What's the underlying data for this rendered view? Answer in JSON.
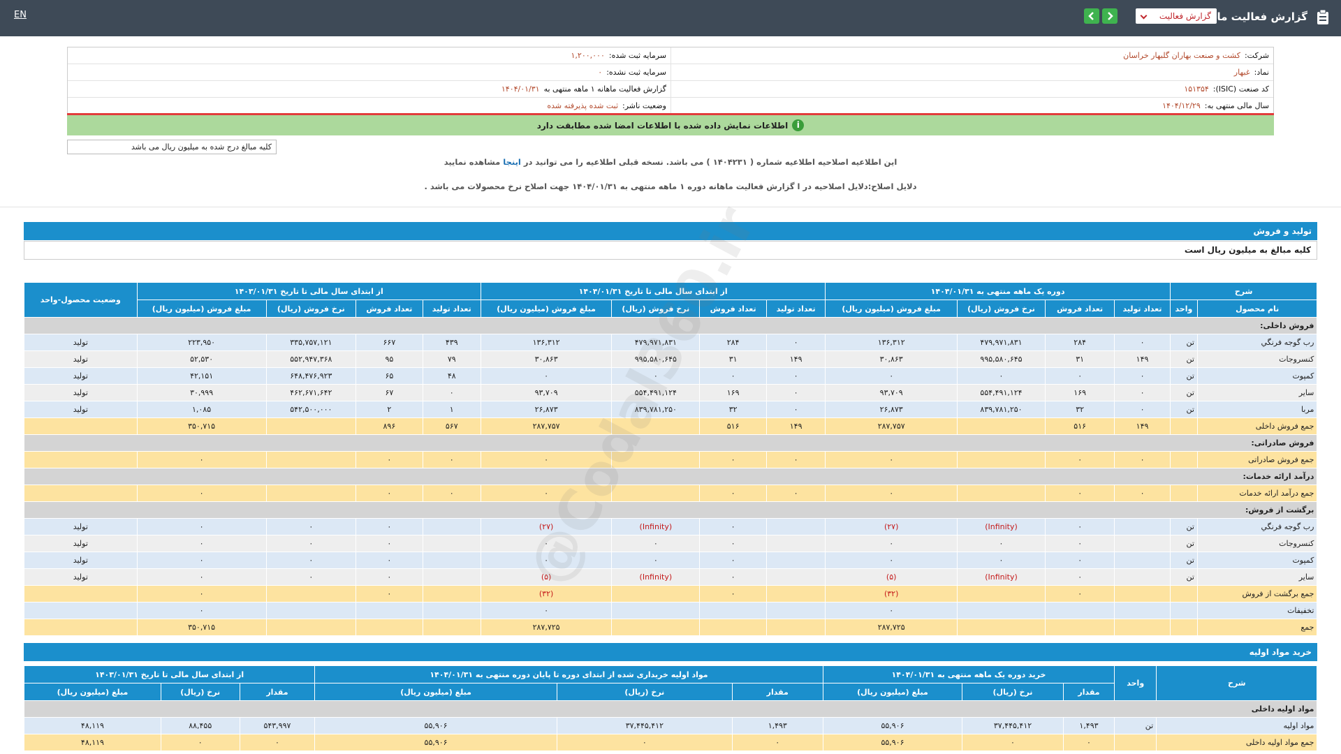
{
  "topbar": {
    "title": "گزارش فعالیت ماهانه",
    "dropdown": "گزارش فعالیت",
    "lang": "EN"
  },
  "info": {
    "right": [
      {
        "label": "شرکت:",
        "value": "کشت و صنعت بهاران گلبهار خراسان"
      },
      {
        "label": "نماد:",
        "value": "غبهار"
      },
      {
        "label": "کد صنعت (ISIC):",
        "value": "۱۵۱۳۵۴"
      },
      {
        "label": "سال مالی منتهی به:",
        "value": "۱۴۰۴/۱۲/۲۹"
      }
    ],
    "left": [
      {
        "label": "سرمایه ثبت شده:",
        "value": "۱,۲۰۰,۰۰۰"
      },
      {
        "label": "سرمایه ثبت نشده:",
        "value": "۰"
      },
      {
        "label": "گزارش فعالیت ماهانه ۱ ماهه منتهی به",
        "value": "۱۴۰۴/۰۱/۳۱"
      },
      {
        "label": "وضعیت ناشر:",
        "value": "ثبت شده پذیرفته شده"
      }
    ]
  },
  "notice": "اطلاعات نمایش داده شده با اطلاعات امضا شده مطابقت دارد",
  "unit_note": "کلیه مبالغ درج شده به میلیون ریال می باشد",
  "correction": {
    "before": "این اطلاعیه اصلاحیه اطلاعیه شماره ( ۱۴۰۴۲۳۱ ) می باشد. نسخه قبلی اطلاعیه را می توانید در",
    "link": "اینجا",
    "after": "مشاهده نمایید",
    "reason": "دلایل اصلاح:دلایل اصلاحیه در ا گزارش فعالیت ماهانه دوره ۱ ماهه منتهی به ۱۴۰۴/۰۱/۳۱ جهت اصلاح نرخ محصولات می باشد ."
  },
  "watermark": "@Codal360.ir",
  "production": {
    "title": "تولید و فروش",
    "subtitle": "کلیه مبالغ به میلیون ریال است",
    "desc": "شرح",
    "product": "نام محصول",
    "unit": "واحد",
    "status": "وضعیت محصول-واحد",
    "groups": [
      {
        "title": "دوره یک ماهه منتهی به ۱۴۰۴/۰۱/۳۱",
        "columns": [
          "تعداد تولید",
          "تعداد فروش",
          "نرخ فروش (ریال)",
          "مبلغ فروش (میلیون ریال)"
        ]
      },
      {
        "title": "از ابتدای سال مالی تا تاریخ ۱۴۰۴/۰۱/۳۱",
        "columns": [
          "تعداد تولید",
          "تعداد فروش",
          "نرخ فروش (ریال)",
          "مبلغ فروش (میلیون ریال)"
        ]
      },
      {
        "title": "از ابتدای سال مالی تا تاریخ ۱۴۰۳/۰۱/۳۱",
        "columns": [
          "تعداد تولید",
          "تعداد فروش",
          "نرخ فروش (ریال)",
          "مبلغ فروش (میلیون ریال)"
        ]
      }
    ],
    "rows": [
      {
        "fill": "#d4d4d4",
        "cells": [
          "فروش داخلی:"
        ]
      },
      {
        "fill": "#dce8f5",
        "cells": [
          "رب گوجه فرنگي",
          "تن",
          "۰",
          "۲۸۴",
          "۴۷۹,۹۷۱,۸۳۱",
          "۱۳۶,۳۱۲",
          "۰",
          "۲۸۴",
          "۴۷۹,۹۷۱,۸۳۱",
          "۱۳۶,۳۱۲",
          "۴۳۹",
          "۶۶۷",
          "۳۳۵,۷۵۷,۱۲۱",
          "۲۲۳,۹۵۰",
          "تولید"
        ]
      },
      {
        "fill": "#eeeeee",
        "cells": [
          "کنسروجات",
          "تن",
          "۱۴۹",
          "۳۱",
          "۹۹۵,۵۸۰,۶۴۵",
          "۳۰,۸۶۳",
          "۱۴۹",
          "۳۱",
          "۹۹۵,۵۸۰,۶۴۵",
          "۳۰,۸۶۳",
          "۷۹",
          "۹۵",
          "۵۵۲,۹۴۷,۳۶۸",
          "۵۲,۵۳۰",
          "تولید"
        ]
      },
      {
        "fill": "#dce8f5",
        "cells": [
          "کمپوت",
          "تن",
          "۰",
          "۰",
          "۰",
          "۰",
          "۰",
          "۰",
          "۰",
          "۰",
          "۴۸",
          "۶۵",
          "۶۴۸,۴۷۶,۹۲۳",
          "۴۲,۱۵۱",
          "تولید"
        ]
      },
      {
        "fill": "#eeeeee",
        "cells": [
          "سایر",
          "تن",
          "۰",
          "۱۶۹",
          "۵۵۴,۴۹۱,۱۲۴",
          "۹۳,۷۰۹",
          "۰",
          "۱۶۹",
          "۵۵۴,۴۹۱,۱۲۴",
          "۹۳,۷۰۹",
          "۰",
          "۶۷",
          "۴۶۲,۶۷۱,۶۴۲",
          "۳۰,۹۹۹",
          "تولید"
        ]
      },
      {
        "fill": "#dce8f5",
        "cells": [
          "مربا",
          "تن",
          "۰",
          "۳۲",
          "۸۳۹,۷۸۱,۲۵۰",
          "۲۶,۸۷۳",
          "۰",
          "۳۲",
          "۸۳۹,۷۸۱,۲۵۰",
          "۲۶,۸۷۳",
          "۱",
          "۲",
          "۵۴۲,۵۰۰,۰۰۰",
          "۱,۰۸۵",
          "تولید"
        ]
      },
      {
        "fill": "#fde3a0",
        "cells": [
          "جمع فروش داخلی",
          null,
          "۱۴۹",
          "۵۱۶",
          null,
          "۲۸۷,۷۵۷",
          "۱۴۹",
          "۵۱۶",
          null,
          "۲۸۷,۷۵۷",
          "۵۶۷",
          "۸۹۶",
          null,
          "۳۵۰,۷۱۵",
          null
        ]
      },
      {
        "fill": "#d4d4d4",
        "cells": [
          "فروش صادراتی:"
        ]
      },
      {
        "fill": "#fde3a0",
        "cells": [
          "جمع فروش صادراتی",
          null,
          "۰",
          "۰",
          null,
          "۰",
          "۰",
          "۰",
          null,
          "۰",
          "۰",
          "۰",
          null,
          "۰",
          null
        ]
      },
      {
        "fill": "#d4d4d4",
        "cells": [
          "درآمد ارائه خدمات:"
        ]
      },
      {
        "fill": "#fde3a0",
        "cells": [
          "جمع درآمد ارائه خدمات",
          null,
          "۰",
          "۰",
          null,
          "۰",
          "۰",
          "۰",
          null,
          "۰",
          "۰",
          "۰",
          null,
          "۰",
          null
        ]
      },
      {
        "fill": "#d4d4d4",
        "cells": [
          "برگشت از فروش:"
        ]
      },
      {
        "fill": "#dce8f5",
        "cells": [
          "رب گوجه فرنگي",
          "تن",
          null,
          "۰",
          "(Infinity)",
          "(۲۷)",
          null,
          "۰",
          "(Infinity)",
          "(۲۷)",
          null,
          "۰",
          "۰",
          "۰",
          "تولید"
        ]
      },
      {
        "fill": "#eeeeee",
        "cells": [
          "کنسروجات",
          "تن",
          null,
          "۰",
          "۰",
          "۰",
          null,
          "۰",
          "۰",
          "۰",
          null,
          "۰",
          "۰",
          "۰",
          "تولید"
        ]
      },
      {
        "fill": "#dce8f5",
        "cells": [
          "کمپوت",
          "تن",
          null,
          "۰",
          "۰",
          "۰",
          null,
          "۰",
          "۰",
          "۰",
          null,
          "۰",
          "۰",
          "۰",
          "تولید"
        ]
      },
      {
        "fill": "#eeeeee",
        "cells": [
          "سایر",
          "تن",
          null,
          "۰",
          "(Infinity)",
          "(۵)",
          null,
          "۰",
          "(Infinity)",
          "(۵)",
          null,
          "۰",
          "۰",
          "۰",
          "تولید"
        ]
      },
      {
        "fill": "#fde3a0",
        "cells": [
          "جمع برگشت از فروش",
          null,
          null,
          "۰",
          null,
          "(۳۲)",
          null,
          "۰",
          null,
          "(۳۲)",
          null,
          "۰",
          null,
          "۰",
          null
        ]
      },
      {
        "fill": "#dce8f5",
        "cells": [
          "تخفیفات",
          null,
          null,
          null,
          null,
          "۰",
          null,
          null,
          null,
          "۰",
          null,
          null,
          null,
          "۰",
          null
        ]
      },
      {
        "fill": "#fde3a0",
        "cells": [
          "جمع",
          null,
          null,
          null,
          null,
          "۲۸۷,۷۲۵",
          null,
          null,
          null,
          "۲۸۷,۷۲۵",
          null,
          null,
          null,
          "۳۵۰,۷۱۵",
          null
        ]
      }
    ]
  },
  "materials": {
    "title": "خرید مواد اولیه",
    "desc": "شرح",
    "unit": "واحد",
    "groups": [
      {
        "title": "خرید دوره یک ماهه منتهی به ۱۴۰۴/۰۱/۳۱",
        "columns": [
          "مقدار",
          "نرخ (ریال)",
          "مبلغ (میلیون ریال)"
        ]
      },
      {
        "title": "مواد اولیه خریداری شده از ابتدای دوره تا پایان دوره منتهی به ۱۴۰۴/۰۱/۳۱",
        "columns": [
          "مقدار",
          "نرخ (ریال)",
          "مبلغ (میلیون ریال)"
        ]
      },
      {
        "title": "از ابتدای سال مالی تا تاریخ ۱۴۰۳/۰۱/۳۱",
        "columns": [
          "مقدار",
          "نرخ (ریال)",
          "مبلغ (میلیون ریال)"
        ]
      }
    ],
    "rows": [
      {
        "fill": "#d4d4d4",
        "cells": [
          "مواد اولیه داخلی"
        ]
      },
      {
        "fill": "#dce8f5",
        "cells": [
          "مواد اولیه",
          "تن",
          "۱,۴۹۳",
          "۳۷,۴۴۵,۴۱۲",
          "۵۵,۹۰۶",
          "۱,۴۹۳",
          "۳۷,۴۴۵,۴۱۲",
          "۵۵,۹۰۶",
          "۵۴۳,۹۹۷",
          "۸۸,۴۵۵",
          "۴۸,۱۱۹"
        ]
      },
      {
        "fill": "#fde3a0",
        "cells": [
          "جمع مواد اولیه داخلی",
          null,
          "۰",
          "۰",
          "۵۵,۹۰۶",
          "۰",
          "۰",
          "۵۵,۹۰۶",
          "۰",
          "۰",
          "۴۸,۱۱۹"
        ]
      }
    ]
  }
}
